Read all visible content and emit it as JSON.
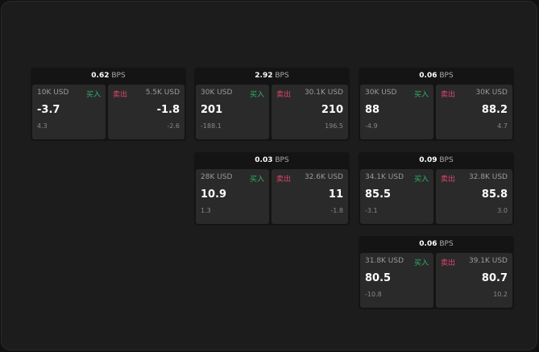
{
  "unit": "BPS",
  "buy_label": "买入",
  "sell_label": "卖出",
  "cards": [
    {
      "bps": "0.62",
      "buy": {
        "size": "10K USD",
        "price": "-3.7",
        "change": "4.3"
      },
      "sell": {
        "size": "5.5K USD",
        "price": "-1.8",
        "change": "-2.6"
      }
    },
    {
      "bps": "2.92",
      "buy": {
        "size": "30K USD",
        "price": "201",
        "change": "-188.1"
      },
      "sell": {
        "size": "30.1K USD",
        "price": "210",
        "change": "196.5"
      }
    },
    {
      "bps": "0.06",
      "buy": {
        "size": "30K USD",
        "price": "88",
        "change": "-4.9"
      },
      "sell": {
        "size": "30K USD",
        "price": "88.2",
        "change": "4.7"
      }
    },
    {
      "bps": "0.03",
      "buy": {
        "size": "28K USD",
        "price": "10.9",
        "change": "1.3"
      },
      "sell": {
        "size": "32.6K USD",
        "price": "11",
        "change": "-1.8"
      }
    },
    {
      "bps": "0.09",
      "buy": {
        "size": "34.1K USD",
        "price": "85.5",
        "change": "-3.1"
      },
      "sell": {
        "size": "32.8K USD",
        "price": "85.8",
        "change": "3.0"
      }
    },
    {
      "bps": "0.06",
      "buy": {
        "size": "31.8K USD",
        "price": "80.5",
        "change": "-10.8"
      },
      "sell": {
        "size": "39.1K USD",
        "price": "80.7",
        "change": "10.2"
      }
    }
  ]
}
